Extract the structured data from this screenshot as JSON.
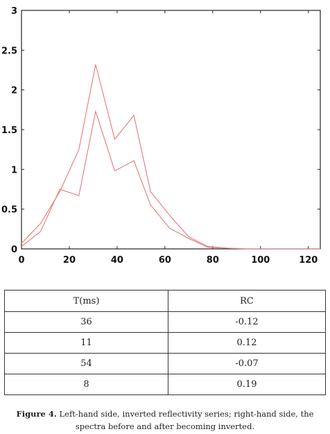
{
  "chart_data": {
    "type": "line",
    "xlim": [
      0,
      125
    ],
    "ylim": [
      0,
      3
    ],
    "x_ticks": [
      0,
      20,
      40,
      60,
      80,
      100,
      120
    ],
    "y_ticks": [
      0,
      0.5,
      1,
      1.5,
      2,
      2.5,
      3
    ],
    "x_tick_labels": [
      "0",
      "20",
      "40",
      "60",
      "80",
      "100",
      "120"
    ],
    "y_tick_labels": [
      "0",
      "0.5",
      "1",
      "1.5",
      "2",
      "2.5",
      "3"
    ],
    "grid": false,
    "colors": {
      "series": "#e87878",
      "axes": "#222222"
    },
    "series": [
      {
        "x": [
          0,
          8,
          16,
          24,
          31,
          39,
          47,
          54,
          62,
          70,
          78,
          86,
          94,
          102,
          109,
          117,
          125
        ],
        "y": [
          0.07,
          0.32,
          0.72,
          1.25,
          2.32,
          1.38,
          1.68,
          0.72,
          0.42,
          0.15,
          0.03,
          0.01,
          0.0,
          0.0,
          0.0,
          0.0,
          0.0
        ]
      },
      {
        "x": [
          0,
          8,
          16,
          24,
          31,
          39,
          47,
          54,
          62,
          70,
          78,
          86,
          94,
          102,
          109,
          117,
          125
        ],
        "y": [
          0.03,
          0.22,
          0.75,
          0.67,
          1.73,
          0.98,
          1.11,
          0.55,
          0.26,
          0.13,
          0.02,
          0.01,
          0.0,
          0.0,
          0.0,
          0.0,
          0.0
        ]
      }
    ]
  },
  "table": {
    "headers": [
      "T(ms)",
      "RC"
    ],
    "rows": [
      [
        "36",
        "-0.12"
      ],
      [
        "11",
        "0.12"
      ],
      [
        "54",
        "-0.07"
      ],
      [
        "8",
        "0.19"
      ]
    ]
  },
  "caption": {
    "label": "Figure 4.",
    "text": " Left-hand side, inverted reflectivity series; right-hand side, the spectra before and after becoming inverted."
  }
}
